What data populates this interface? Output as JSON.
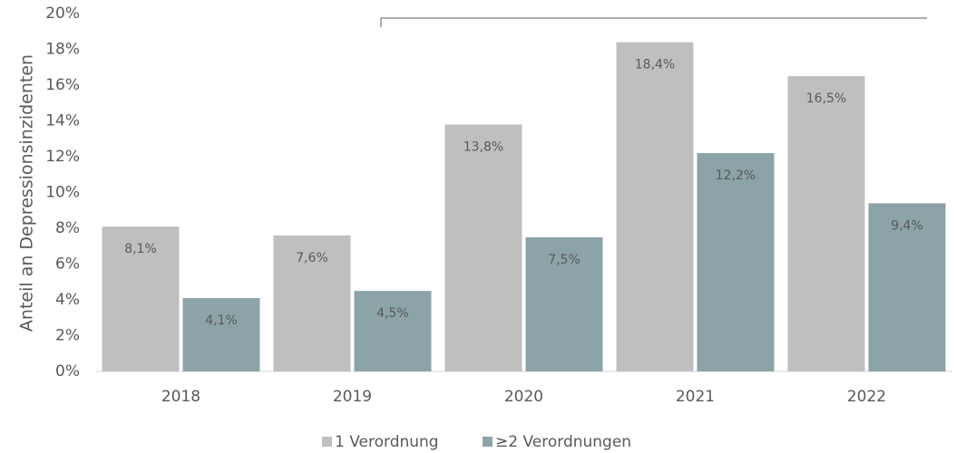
{
  "chart_data": {
    "type": "bar",
    "ylabel": "Anteil an Depressionsinzidenten",
    "categories": [
      "2018",
      "2019",
      "2020",
      "2021",
      "2022"
    ],
    "series": [
      {
        "name": "1 Verordnung",
        "color": "#bfbfbf",
        "values": [
          8.1,
          7.6,
          13.8,
          18.4,
          16.5
        ],
        "value_labels": [
          "8,1%",
          "7,6%",
          "13,8%",
          "18,4%",
          "16,5%"
        ]
      },
      {
        "name": "≥2 Verordnungen",
        "color": "#8ca3a8",
        "values": [
          4.1,
          4.5,
          7.5,
          12.2,
          9.4
        ],
        "value_labels": [
          "4,1%",
          "4,5%",
          "7,5%",
          "12,2%",
          "9,4%"
        ]
      }
    ],
    "ylim": [
      0,
      20
    ],
    "yticks": [
      {
        "value": 0,
        "label": "0%"
      },
      {
        "value": 2,
        "label": "2%"
      },
      {
        "value": 4,
        "label": "4%"
      },
      {
        "value": 6,
        "label": "6%"
      },
      {
        "value": 8,
        "label": "8%"
      },
      {
        "value": 10,
        "label": "10%"
      },
      {
        "value": 12,
        "label": "12%"
      },
      {
        "value": 14,
        "label": "14%"
      },
      {
        "value": 16,
        "label": "16%"
      },
      {
        "value": 18,
        "label": "18%"
      },
      {
        "value": 20,
        "label": "20%"
      }
    ],
    "legend": "bottom"
  }
}
